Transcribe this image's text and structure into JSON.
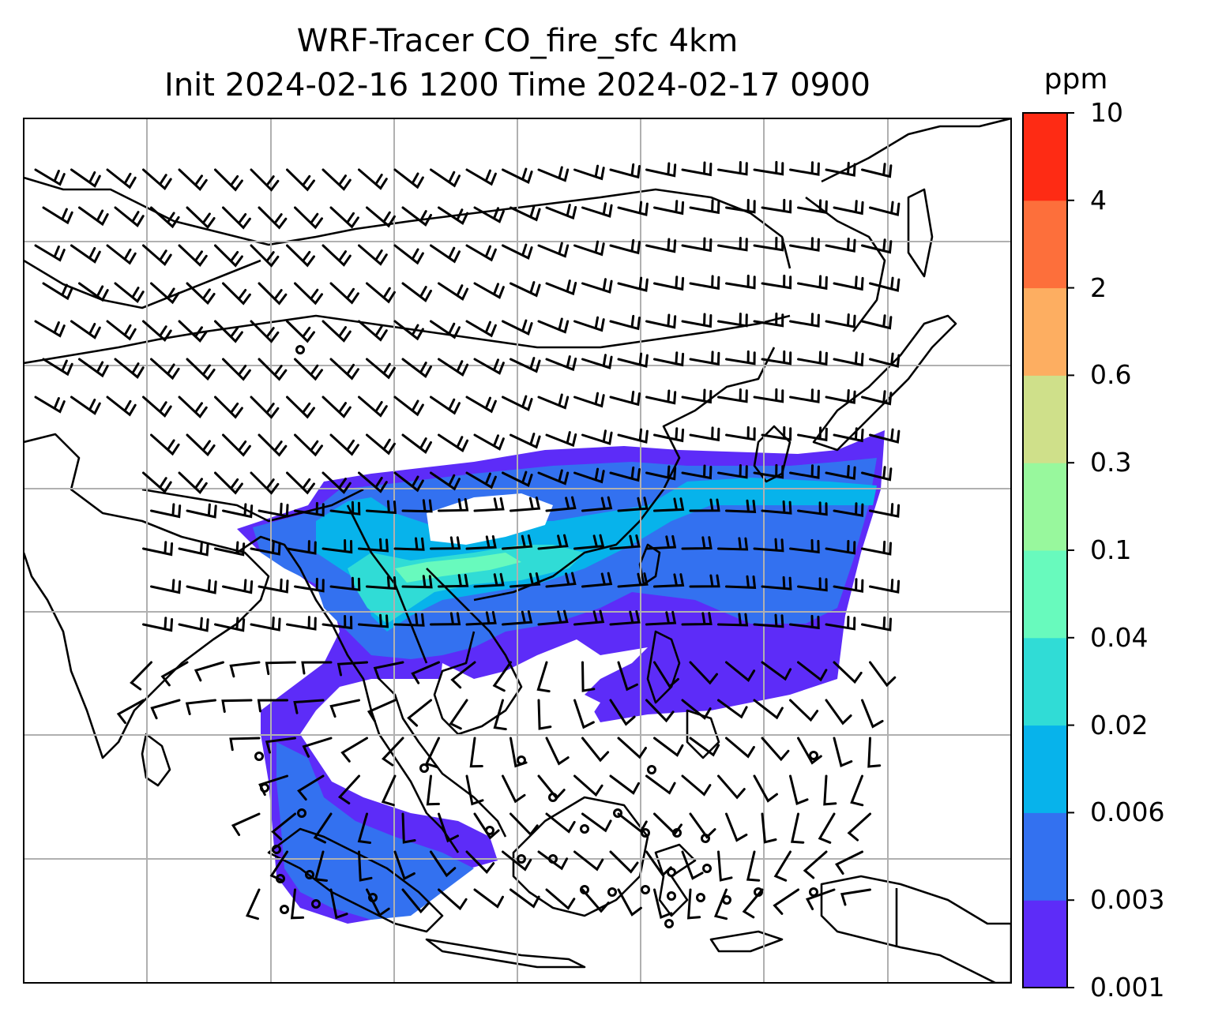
{
  "title": {
    "line1": "WRF-Tracer CO_fire_sfc 4km",
    "line2": "Init 2024-02-16 1200 Time 2024-02-17 0900"
  },
  "colorbar": {
    "unit": "ppm",
    "levels": [
      "0.001",
      "0.003",
      "0.006",
      "0.02",
      "0.04",
      "0.1",
      "0.3",
      "0.6",
      "2",
      "4",
      "10"
    ],
    "colors": [
      "#5d2cf8",
      "#3371f0",
      "#07b3eb",
      "#30dcd6",
      "#68fabd",
      "#98f89d",
      "#cfe08a",
      "#fdae61",
      "#fd6f3b",
      "#fe2b14"
    ]
  },
  "map": {
    "field": "CO_fire_sfc",
    "overlay": "wind barbs",
    "gridlines": true
  }
}
